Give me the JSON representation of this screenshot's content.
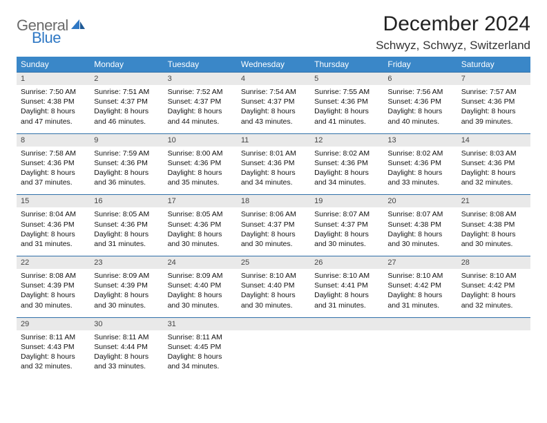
{
  "logo": {
    "general": "General",
    "blue": "Blue"
  },
  "title": "December 2024",
  "location": "Schwyz, Schwyz, Switzerland",
  "colors": {
    "header_bg": "#3a87c8",
    "header_text": "#ffffff",
    "daynum_bg": "#e9e9e9",
    "rule": "#2f6fa8",
    "logo_gray": "#6a6a6a",
    "logo_blue": "#2f78c4"
  },
  "weekdays": [
    "Sunday",
    "Monday",
    "Tuesday",
    "Wednesday",
    "Thursday",
    "Friday",
    "Saturday"
  ],
  "weeks": [
    [
      {
        "n": "1",
        "sr": "Sunrise: 7:50 AM",
        "ss": "Sunset: 4:38 PM",
        "d1": "Daylight: 8 hours",
        "d2": "and 47 minutes."
      },
      {
        "n": "2",
        "sr": "Sunrise: 7:51 AM",
        "ss": "Sunset: 4:37 PM",
        "d1": "Daylight: 8 hours",
        "d2": "and 46 minutes."
      },
      {
        "n": "3",
        "sr": "Sunrise: 7:52 AM",
        "ss": "Sunset: 4:37 PM",
        "d1": "Daylight: 8 hours",
        "d2": "and 44 minutes."
      },
      {
        "n": "4",
        "sr": "Sunrise: 7:54 AM",
        "ss": "Sunset: 4:37 PM",
        "d1": "Daylight: 8 hours",
        "d2": "and 43 minutes."
      },
      {
        "n": "5",
        "sr": "Sunrise: 7:55 AM",
        "ss": "Sunset: 4:36 PM",
        "d1": "Daylight: 8 hours",
        "d2": "and 41 minutes."
      },
      {
        "n": "6",
        "sr": "Sunrise: 7:56 AM",
        "ss": "Sunset: 4:36 PM",
        "d1": "Daylight: 8 hours",
        "d2": "and 40 minutes."
      },
      {
        "n": "7",
        "sr": "Sunrise: 7:57 AM",
        "ss": "Sunset: 4:36 PM",
        "d1": "Daylight: 8 hours",
        "d2": "and 39 minutes."
      }
    ],
    [
      {
        "n": "8",
        "sr": "Sunrise: 7:58 AM",
        "ss": "Sunset: 4:36 PM",
        "d1": "Daylight: 8 hours",
        "d2": "and 37 minutes."
      },
      {
        "n": "9",
        "sr": "Sunrise: 7:59 AM",
        "ss": "Sunset: 4:36 PM",
        "d1": "Daylight: 8 hours",
        "d2": "and 36 minutes."
      },
      {
        "n": "10",
        "sr": "Sunrise: 8:00 AM",
        "ss": "Sunset: 4:36 PM",
        "d1": "Daylight: 8 hours",
        "d2": "and 35 minutes."
      },
      {
        "n": "11",
        "sr": "Sunrise: 8:01 AM",
        "ss": "Sunset: 4:36 PM",
        "d1": "Daylight: 8 hours",
        "d2": "and 34 minutes."
      },
      {
        "n": "12",
        "sr": "Sunrise: 8:02 AM",
        "ss": "Sunset: 4:36 PM",
        "d1": "Daylight: 8 hours",
        "d2": "and 34 minutes."
      },
      {
        "n": "13",
        "sr": "Sunrise: 8:02 AM",
        "ss": "Sunset: 4:36 PM",
        "d1": "Daylight: 8 hours",
        "d2": "and 33 minutes."
      },
      {
        "n": "14",
        "sr": "Sunrise: 8:03 AM",
        "ss": "Sunset: 4:36 PM",
        "d1": "Daylight: 8 hours",
        "d2": "and 32 minutes."
      }
    ],
    [
      {
        "n": "15",
        "sr": "Sunrise: 8:04 AM",
        "ss": "Sunset: 4:36 PM",
        "d1": "Daylight: 8 hours",
        "d2": "and 31 minutes."
      },
      {
        "n": "16",
        "sr": "Sunrise: 8:05 AM",
        "ss": "Sunset: 4:36 PM",
        "d1": "Daylight: 8 hours",
        "d2": "and 31 minutes."
      },
      {
        "n": "17",
        "sr": "Sunrise: 8:05 AM",
        "ss": "Sunset: 4:36 PM",
        "d1": "Daylight: 8 hours",
        "d2": "and 30 minutes."
      },
      {
        "n": "18",
        "sr": "Sunrise: 8:06 AM",
        "ss": "Sunset: 4:37 PM",
        "d1": "Daylight: 8 hours",
        "d2": "and 30 minutes."
      },
      {
        "n": "19",
        "sr": "Sunrise: 8:07 AM",
        "ss": "Sunset: 4:37 PM",
        "d1": "Daylight: 8 hours",
        "d2": "and 30 minutes."
      },
      {
        "n": "20",
        "sr": "Sunrise: 8:07 AM",
        "ss": "Sunset: 4:38 PM",
        "d1": "Daylight: 8 hours",
        "d2": "and 30 minutes."
      },
      {
        "n": "21",
        "sr": "Sunrise: 8:08 AM",
        "ss": "Sunset: 4:38 PM",
        "d1": "Daylight: 8 hours",
        "d2": "and 30 minutes."
      }
    ],
    [
      {
        "n": "22",
        "sr": "Sunrise: 8:08 AM",
        "ss": "Sunset: 4:39 PM",
        "d1": "Daylight: 8 hours",
        "d2": "and 30 minutes."
      },
      {
        "n": "23",
        "sr": "Sunrise: 8:09 AM",
        "ss": "Sunset: 4:39 PM",
        "d1": "Daylight: 8 hours",
        "d2": "and 30 minutes."
      },
      {
        "n": "24",
        "sr": "Sunrise: 8:09 AM",
        "ss": "Sunset: 4:40 PM",
        "d1": "Daylight: 8 hours",
        "d2": "and 30 minutes."
      },
      {
        "n": "25",
        "sr": "Sunrise: 8:10 AM",
        "ss": "Sunset: 4:40 PM",
        "d1": "Daylight: 8 hours",
        "d2": "and 30 minutes."
      },
      {
        "n": "26",
        "sr": "Sunrise: 8:10 AM",
        "ss": "Sunset: 4:41 PM",
        "d1": "Daylight: 8 hours",
        "d2": "and 31 minutes."
      },
      {
        "n": "27",
        "sr": "Sunrise: 8:10 AM",
        "ss": "Sunset: 4:42 PM",
        "d1": "Daylight: 8 hours",
        "d2": "and 31 minutes."
      },
      {
        "n": "28",
        "sr": "Sunrise: 8:10 AM",
        "ss": "Sunset: 4:42 PM",
        "d1": "Daylight: 8 hours",
        "d2": "and 32 minutes."
      }
    ],
    [
      {
        "n": "29",
        "sr": "Sunrise: 8:11 AM",
        "ss": "Sunset: 4:43 PM",
        "d1": "Daylight: 8 hours",
        "d2": "and 32 minutes."
      },
      {
        "n": "30",
        "sr": "Sunrise: 8:11 AM",
        "ss": "Sunset: 4:44 PM",
        "d1": "Daylight: 8 hours",
        "d2": "and 33 minutes."
      },
      {
        "n": "31",
        "sr": "Sunrise: 8:11 AM",
        "ss": "Sunset: 4:45 PM",
        "d1": "Daylight: 8 hours",
        "d2": "and 34 minutes."
      },
      {
        "n": "",
        "sr": "",
        "ss": "",
        "d1": "",
        "d2": ""
      },
      {
        "n": "",
        "sr": "",
        "ss": "",
        "d1": "",
        "d2": ""
      },
      {
        "n": "",
        "sr": "",
        "ss": "",
        "d1": "",
        "d2": ""
      },
      {
        "n": "",
        "sr": "",
        "ss": "",
        "d1": "",
        "d2": ""
      }
    ]
  ]
}
